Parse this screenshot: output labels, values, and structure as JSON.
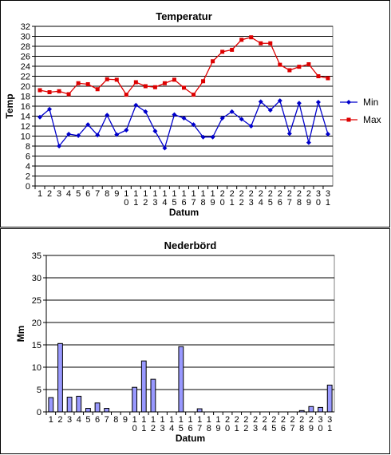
{
  "chart_data": [
    {
      "type": "line",
      "title": "Temperatur",
      "xlabel": "Datum",
      "ylabel": "Temp",
      "ylim": [
        0,
        32
      ],
      "ytick_step": 2,
      "grid": true,
      "legend": "right",
      "categories": [
        "1",
        "2",
        "3",
        "4",
        "5",
        "6",
        "7",
        "8",
        "9",
        "10",
        "11",
        "12",
        "13",
        "14",
        "15",
        "16",
        "17",
        "18",
        "19",
        "20",
        "21",
        "22",
        "23",
        "24",
        "25",
        "26",
        "27",
        "28",
        "29",
        "30",
        "31"
      ],
      "series": [
        {
          "name": "Min",
          "color": "#0000cc",
          "marker": "diamond",
          "values": [
            13.8,
            15.4,
            8.0,
            10.4,
            10.1,
            12.3,
            10.2,
            14.2,
            10.3,
            11.2,
            16.2,
            14.9,
            11.0,
            7.6,
            14.3,
            13.6,
            12.3,
            9.8,
            9.8,
            13.6,
            14.9,
            13.4,
            12.0,
            16.9,
            15.2,
            17.1,
            10.5,
            16.6,
            8.7,
            16.8,
            10.4
          ]
        },
        {
          "name": "Max",
          "color": "#dd0000",
          "marker": "square",
          "values": [
            19.2,
            18.8,
            19.0,
            18.4,
            20.6,
            20.4,
            19.4,
            21.4,
            21.3,
            18.3,
            20.8,
            20.0,
            19.8,
            20.6,
            21.3,
            19.7,
            18.3,
            21.0,
            25.0,
            26.9,
            27.3,
            29.3,
            29.8,
            28.6,
            28.6,
            24.3,
            23.2,
            23.9,
            24.4,
            22.0,
            21.6
          ]
        }
      ]
    },
    {
      "type": "bar",
      "title": "Nederbörd",
      "xlabel": "Datum",
      "ylabel": "Mm",
      "ylim": [
        0,
        35
      ],
      "ytick_step": 5,
      "grid": true,
      "color": "#9999ff",
      "categories": [
        "1",
        "2",
        "3",
        "4",
        "5",
        "6",
        "7",
        "8",
        "9",
        "10",
        "11",
        "12",
        "13",
        "14",
        "15",
        "16",
        "17",
        "18",
        "19",
        "20",
        "21",
        "22",
        "23",
        "24",
        "25",
        "26",
        "27",
        "28",
        "29",
        "30",
        "31"
      ],
      "values": [
        3.2,
        15.3,
        3.3,
        3.5,
        0.8,
        2.0,
        0.8,
        0,
        0,
        5.5,
        11.4,
        7.3,
        0,
        0,
        14.6,
        0,
        0.7,
        0,
        0,
        0,
        0,
        0,
        0,
        0,
        0,
        0,
        0,
        0.3,
        1.2,
        1.0,
        6.0
      ]
    }
  ]
}
